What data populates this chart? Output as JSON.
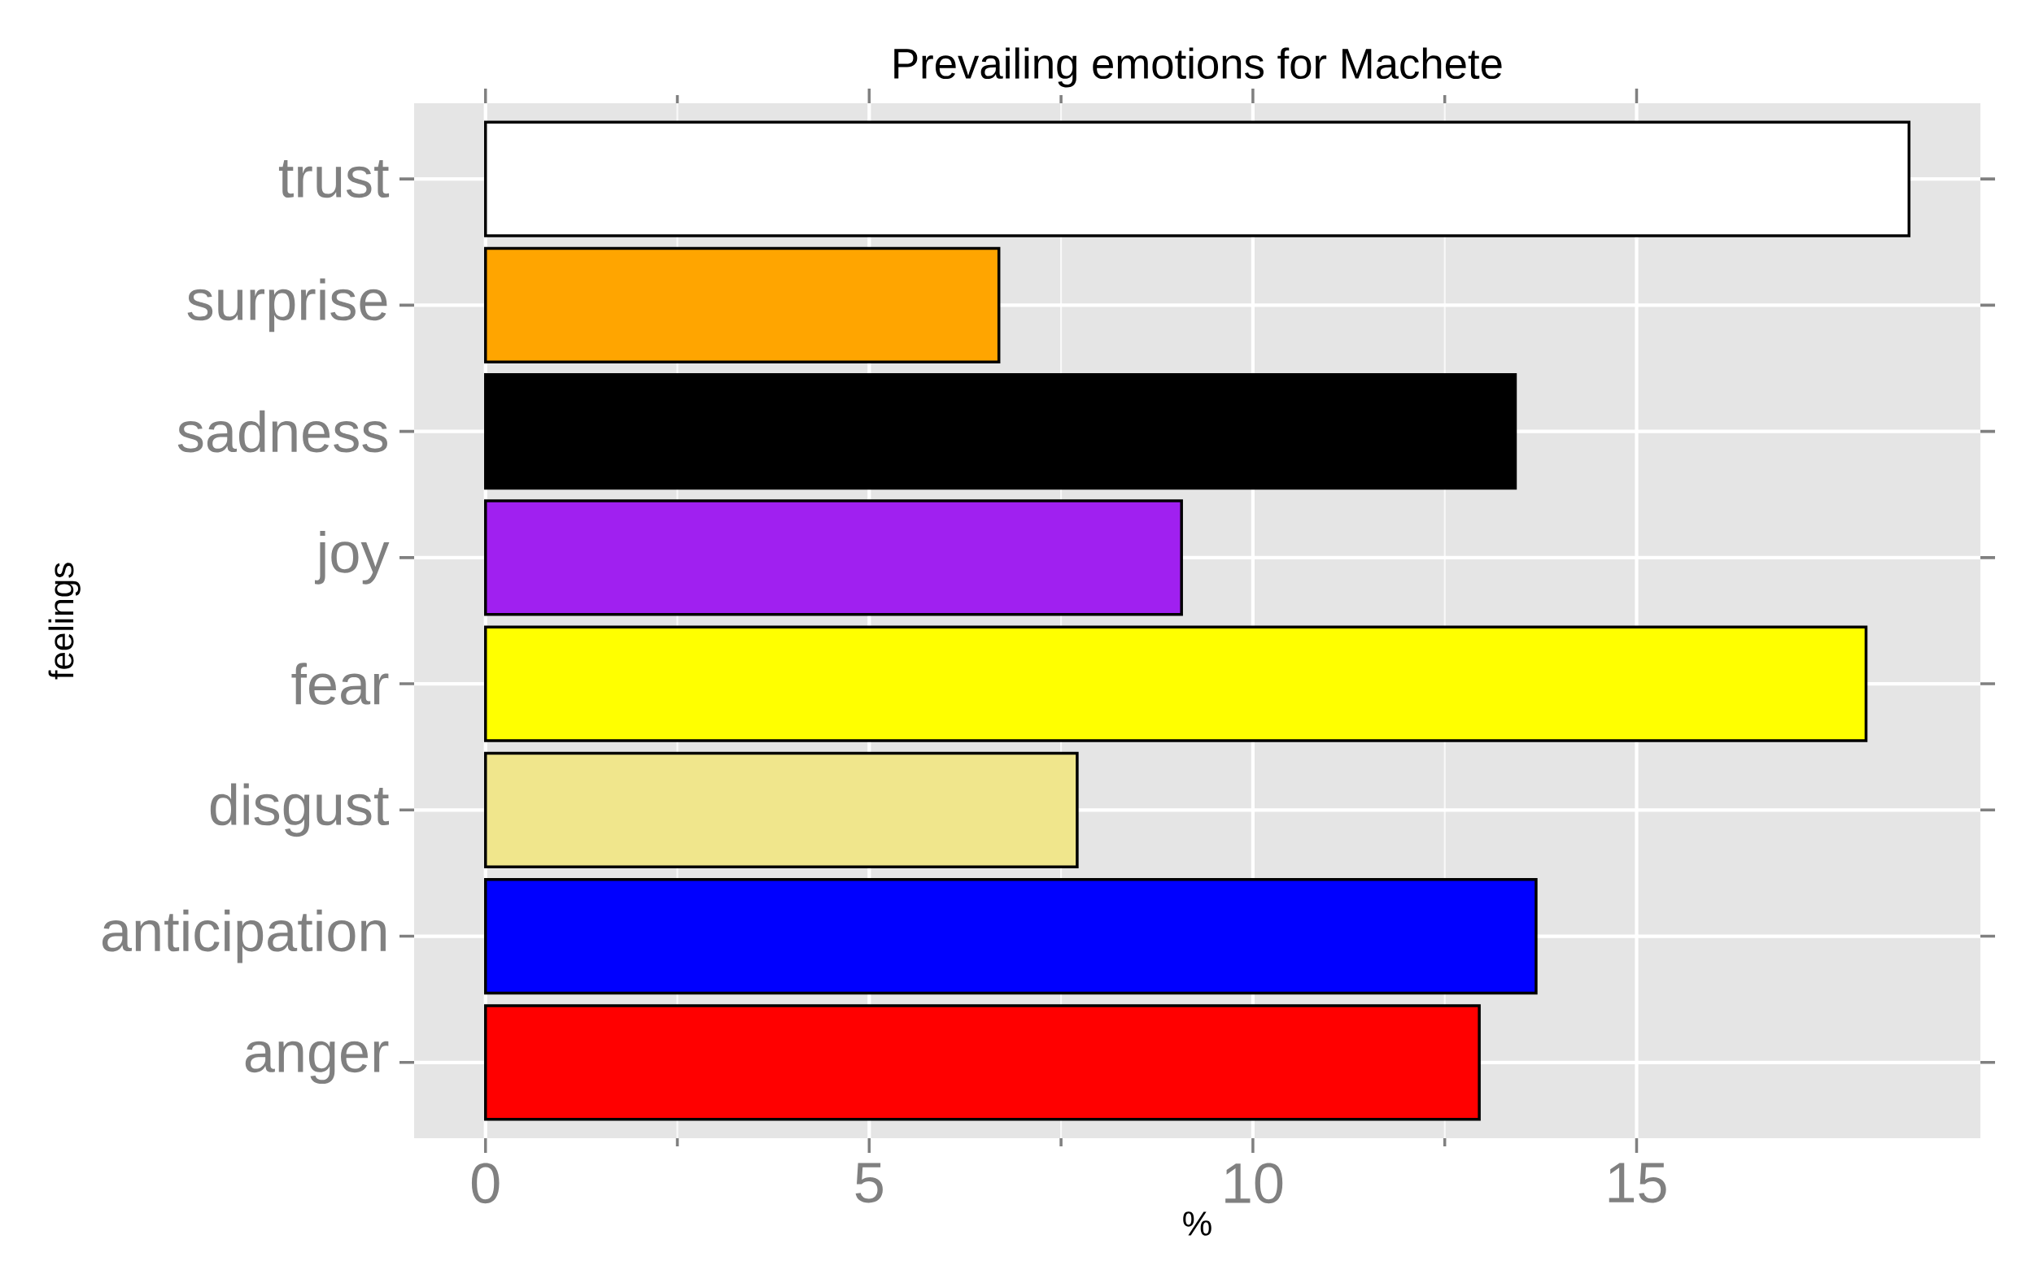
{
  "chart_data": {
    "type": "bar",
    "orientation": "horizontal",
    "title": "Prevailing emotions for Machete",
    "xlabel": "%",
    "ylabel": "feelings",
    "categories": [
      "trust",
      "surprise",
      "sadness",
      "joy",
      "fear",
      "disgust",
      "anticipation",
      "anger"
    ],
    "values": [
      18.55,
      6.69,
      13.42,
      9.07,
      17.99,
      7.71,
      13.69,
      12.95
    ],
    "colors": [
      "#ffffff",
      "#ffa500",
      "#000000",
      "#a020f0",
      "#ffff00",
      "#f0e68c",
      "#0000ff",
      "#ff0000"
    ],
    "xlim": [
      -0.93,
      19.48
    ],
    "xticks": [
      0,
      5,
      10,
      15
    ],
    "grid": true
  }
}
